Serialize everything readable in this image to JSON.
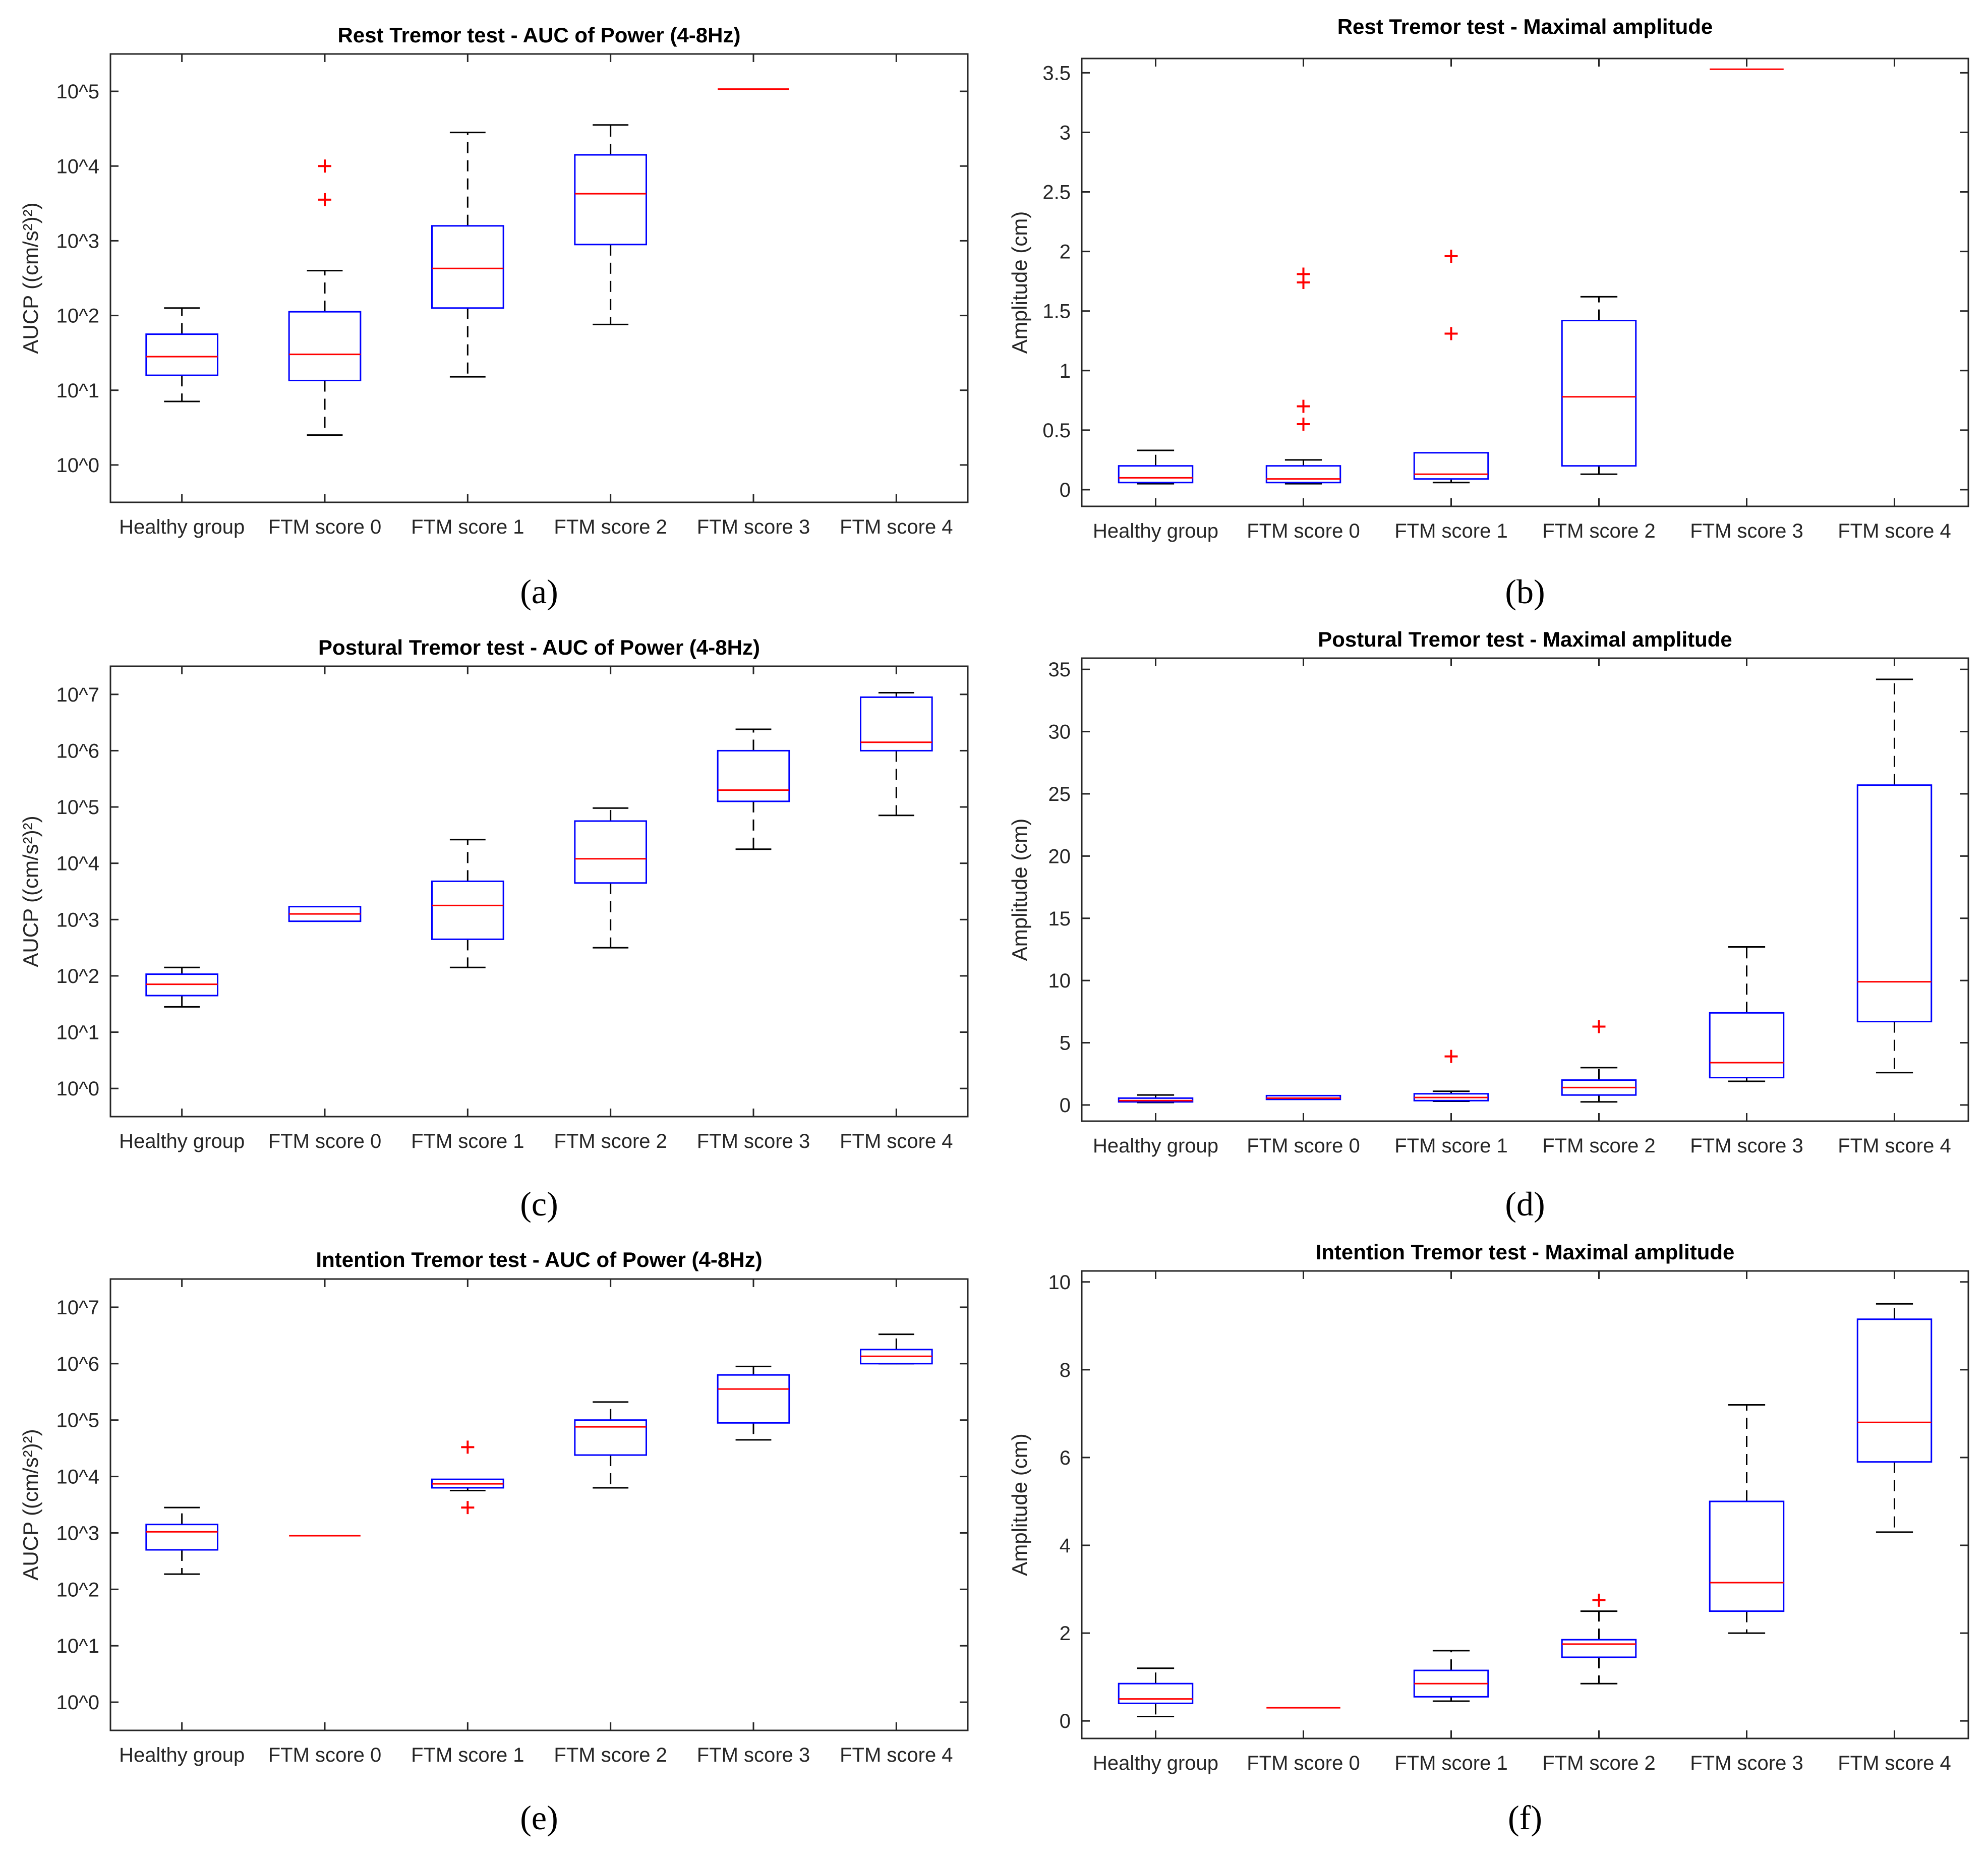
{
  "chart_data": [
    {
      "panel_label": "(a)",
      "type": "box",
      "title": "Rest Tremor test - AUC of Power (4-8Hz)",
      "ylabel": "AUCP ((cm/s²)²)",
      "yscale": "log",
      "ylim_log10": [
        -0.5,
        5.5
      ],
      "yticks": [
        0,
        1,
        2,
        3,
        4,
        5
      ],
      "ytick_labels": [
        "10^0",
        "10^1",
        "10^2",
        "10^3",
        "10^4",
        "10^5"
      ],
      "categories": [
        "Healthy group",
        "FTM score 0",
        "FTM score 1",
        "FTM score 2",
        "FTM score 3",
        "FTM score 4"
      ],
      "boxes": [
        {
          "whisker_low": 0.85,
          "q1": 1.2,
          "median": 1.45,
          "q3": 1.75,
          "whisker_high": 2.1,
          "outliers": []
        },
        {
          "whisker_low": 0.4,
          "q1": 1.13,
          "median": 1.48,
          "q3": 2.05,
          "whisker_high": 2.6,
          "outliers": [
            3.55,
            4.0
          ]
        },
        {
          "whisker_low": 1.18,
          "q1": 2.1,
          "median": 2.63,
          "q3": 3.2,
          "whisker_high": 4.45,
          "outliers": []
        },
        {
          "whisker_low": 1.88,
          "q1": 2.95,
          "median": 3.63,
          "q3": 4.15,
          "whisker_high": 4.55,
          "outliers": []
        },
        {
          "whisker_low": null,
          "q1": 5.03,
          "median": 5.03,
          "q3": 5.03,
          "whisker_high": null,
          "outliers": []
        },
        null
      ]
    },
    {
      "panel_label": "(b)",
      "type": "box",
      "title": "Rest Tremor test - Maximal amplitude",
      "ylabel": "Amplitude (cm)",
      "yscale": "linear",
      "ylim": [
        -0.14,
        3.62
      ],
      "yticks": [
        0,
        0.5,
        1,
        1.5,
        2,
        2.5,
        3,
        3.5
      ],
      "ytick_labels": [
        "0",
        "0.5",
        "1",
        "1.5",
        "2",
        "2.5",
        "3",
        "3.5"
      ],
      "categories": [
        "Healthy group",
        "FTM score 0",
        "FTM score 1",
        "FTM score 2",
        "FTM score 3",
        "FTM score 4"
      ],
      "boxes": [
        {
          "whisker_low": 0.05,
          "q1": 0.06,
          "median": 0.1,
          "q3": 0.2,
          "whisker_high": 0.33,
          "outliers": []
        },
        {
          "whisker_low": 0.05,
          "q1": 0.06,
          "median": 0.09,
          "q3": 0.2,
          "whisker_high": 0.25,
          "outliers": [
            0.55,
            0.7,
            1.74,
            1.81
          ]
        },
        {
          "whisker_low": 0.06,
          "q1": 0.09,
          "median": 0.13,
          "q3": 0.31,
          "whisker_high": null,
          "outliers": [
            1.31,
            1.96
          ]
        },
        {
          "whisker_low": 0.13,
          "q1": 0.2,
          "median": 0.78,
          "q3": 1.42,
          "whisker_high": 1.62,
          "outliers": []
        },
        {
          "whisker_low": null,
          "q1": 3.53,
          "median": 3.53,
          "q3": 3.53,
          "whisker_high": null,
          "outliers": []
        },
        null
      ]
    },
    {
      "panel_label": "(c)",
      "type": "box",
      "title": "Postural Tremor test - AUC of Power (4-8Hz)",
      "ylabel": "AUCP ((cm/s²)²)",
      "yscale": "log",
      "ylim_log10": [
        -0.5,
        7.5
      ],
      "yticks": [
        0,
        1,
        2,
        3,
        4,
        5,
        6,
        7
      ],
      "ytick_labels": [
        "10^0",
        "10^1",
        "10^2",
        "10^3",
        "10^4",
        "10^5",
        "10^6",
        "10^7"
      ],
      "categories": [
        "Healthy group",
        "FTM score 0",
        "FTM score 1",
        "FTM score 2",
        "FTM score 3",
        "FTM score 4"
      ],
      "boxes": [
        {
          "whisker_low": 1.45,
          "q1": 1.65,
          "median": 1.85,
          "q3": 2.03,
          "whisker_high": 2.15,
          "outliers": []
        },
        {
          "whisker_low": null,
          "q1": 2.97,
          "median": 3.1,
          "q3": 3.23,
          "whisker_high": null,
          "outliers": []
        },
        {
          "whisker_low": 2.15,
          "q1": 2.65,
          "median": 3.25,
          "q3": 3.68,
          "whisker_high": 4.42,
          "outliers": []
        },
        {
          "whisker_low": 2.5,
          "q1": 3.65,
          "median": 4.08,
          "q3": 4.75,
          "whisker_high": 4.98,
          "outliers": []
        },
        {
          "whisker_low": 4.25,
          "q1": 5.1,
          "median": 5.3,
          "q3": 6.0,
          "whisker_high": 6.38,
          "outliers": []
        },
        {
          "whisker_low": 4.85,
          "q1": 6.0,
          "median": 6.15,
          "q3": 6.95,
          "whisker_high": 7.03,
          "outliers": []
        }
      ]
    },
    {
      "panel_label": "(d)",
      "type": "box",
      "title": "Postural Tremor test - Maximal amplitude",
      "ylabel": "Amplitude (cm)",
      "yscale": "linear",
      "ylim": [
        -1.3,
        35.9
      ],
      "yticks": [
        0,
        5,
        10,
        15,
        20,
        25,
        30,
        35
      ],
      "ytick_labels": [
        "0",
        "5",
        "10",
        "15",
        "20",
        "25",
        "30",
        "35"
      ],
      "categories": [
        "Healthy group",
        "FTM score 0",
        "FTM score 1",
        "FTM score 2",
        "FTM score 3",
        "FTM score 4"
      ],
      "boxes": [
        {
          "whisker_low": 0.2,
          "q1": 0.25,
          "median": 0.35,
          "q3": 0.55,
          "whisker_high": 0.8,
          "outliers": []
        },
        {
          "whisker_low": null,
          "q1": 0.45,
          "median": 0.55,
          "q3": 0.75,
          "whisker_high": null,
          "outliers": []
        },
        {
          "whisker_low": 0.3,
          "q1": 0.35,
          "median": 0.6,
          "q3": 0.9,
          "whisker_high": 1.1,
          "outliers": [
            3.9
          ]
        },
        {
          "whisker_low": 0.25,
          "q1": 0.8,
          "median": 1.4,
          "q3": 2.0,
          "whisker_high": 3.0,
          "outliers": [
            6.3
          ]
        },
        {
          "whisker_low": 1.9,
          "q1": 2.2,
          "median": 3.4,
          "q3": 7.4,
          "whisker_high": 12.7,
          "outliers": []
        },
        {
          "whisker_low": 2.6,
          "q1": 6.7,
          "median": 9.9,
          "q3": 25.7,
          "whisker_high": 34.2,
          "outliers": []
        }
      ]
    },
    {
      "panel_label": "(e)",
      "type": "box",
      "title": "Intention Tremor test - AUC of Power (4-8Hz)",
      "ylabel": "AUCP ((cm/s²)²)",
      "yscale": "log",
      "ylim_log10": [
        -0.5,
        7.5
      ],
      "yticks": [
        0,
        1,
        2,
        3,
        4,
        5,
        6,
        7
      ],
      "ytick_labels": [
        "10^0",
        "10^1",
        "10^2",
        "10^3",
        "10^4",
        "10^5",
        "10^6",
        "10^7"
      ],
      "categories": [
        "Healthy group",
        "FTM score 0",
        "FTM score 1",
        "FTM score 2",
        "FTM score 3",
        "FTM score 4"
      ],
      "boxes": [
        {
          "whisker_low": 2.27,
          "q1": 2.7,
          "median": 3.02,
          "q3": 3.15,
          "whisker_high": 3.45,
          "outliers": []
        },
        {
          "whisker_low": null,
          "q1": 2.95,
          "median": 2.95,
          "q3": 2.95,
          "whisker_high": null,
          "outliers": []
        },
        {
          "whisker_low": 3.75,
          "q1": 3.8,
          "median": 3.87,
          "q3": 3.95,
          "whisker_high": null,
          "outliers": [
            3.45,
            4.52
          ]
        },
        {
          "whisker_low": 3.8,
          "q1": 4.38,
          "median": 4.88,
          "q3": 5.0,
          "whisker_high": 5.32,
          "outliers": []
        },
        {
          "whisker_low": 4.65,
          "q1": 4.95,
          "median": 5.55,
          "q3": 5.8,
          "whisker_high": 5.95,
          "outliers": []
        },
        {
          "whisker_low": 6.0,
          "q1": 6.0,
          "median": 6.13,
          "q3": 6.25,
          "whisker_high": 6.52,
          "outliers": []
        }
      ]
    },
    {
      "panel_label": "(f)",
      "type": "box",
      "title": "Intention Tremor test - Maximal amplitude",
      "ylabel": "Amplitude (cm)",
      "yscale": "linear",
      "ylim": [
        -0.4,
        10.25
      ],
      "yticks": [
        0,
        2,
        4,
        6,
        8,
        10
      ],
      "ytick_labels": [
        "0",
        "2",
        "4",
        "6",
        "8",
        "10"
      ],
      "categories": [
        "Healthy group",
        "FTM score 0",
        "FTM score 1",
        "FTM score 2",
        "FTM score 3",
        "FTM score 4"
      ],
      "boxes": [
        {
          "whisker_low": 0.1,
          "q1": 0.4,
          "median": 0.5,
          "q3": 0.85,
          "whisker_high": 1.2,
          "outliers": []
        },
        {
          "whisker_low": null,
          "q1": 0.3,
          "median": 0.3,
          "q3": 0.3,
          "whisker_high": null,
          "outliers": []
        },
        {
          "whisker_low": 0.45,
          "q1": 0.55,
          "median": 0.85,
          "q3": 1.15,
          "whisker_high": 1.6,
          "outliers": []
        },
        {
          "whisker_low": 0.85,
          "q1": 1.45,
          "median": 1.75,
          "q3": 1.85,
          "whisker_high": 2.5,
          "outliers": [
            2.75
          ]
        },
        {
          "whisker_low": 2.0,
          "q1": 2.5,
          "median": 3.15,
          "q3": 5.0,
          "whisker_high": 7.2,
          "outliers": []
        },
        {
          "whisker_low": 4.3,
          "q1": 5.9,
          "median": 6.8,
          "q3": 9.15,
          "whisker_high": 9.5,
          "outliers": []
        }
      ]
    }
  ],
  "colors": {
    "box": "#0000ff",
    "median": "#ff0000",
    "outlier": "#ff0000",
    "whisker": "#000000",
    "axes": "#262626",
    "text": "#262626"
  }
}
